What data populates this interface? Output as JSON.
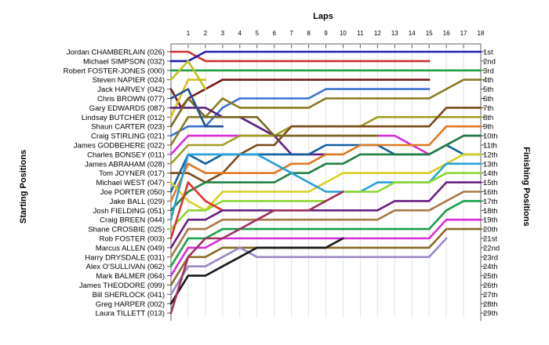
{
  "chart_data": {
    "type": "line",
    "title": "Laps",
    "ylabel_left": "Starting Positions",
    "ylabel_right": "Finishing Positions",
    "x_ticks": [
      1,
      2,
      3,
      4,
      5,
      6,
      7,
      8,
      9,
      10,
      11,
      12,
      13,
      14,
      15,
      16,
      17,
      18
    ],
    "xlim": [
      0,
      18
    ],
    "ylim": [
      1,
      29
    ],
    "grid": "vertical",
    "starting_labels": [
      "Jordan CHAMBERLAIN (026)",
      "Michael SIMPSON (032)",
      "Robert FOSTER-JONES (000)",
      "Steven NAPIER (024)",
      "Jack HARVEY (042)",
      "Chris BROWN (077)",
      "Gary EDWARDS (087)",
      "Lindsay BUTCHER (012)",
      "Shaun CARTER (023)",
      "Craig STIRLING (021)",
      "James GODBEHERE (022)",
      "Charles BONSEY (011)",
      "James ABRAHAM (028)",
      "Tom JOYNER (017)",
      "Michael WEST (047)",
      "Joe PORTER (050)",
      "Jake BALL (029)",
      "Josh FIELDING (051)",
      "Craig BREEN (044)",
      "Shane CROSBIE (025)",
      "Rob FOSTER (003)",
      "Marcus ALLEN (049)",
      "Harry DRYSDALE (031)",
      "Alex O'SULLIVAN (062)",
      "Mark BALMER (064)",
      "James THEODORE (099)",
      "Bill SHERLOCK (041)",
      "Greg HARPER (002)",
      "Laura TILLETT (013)"
    ],
    "finishing_labels": [
      "1st",
      "2nd",
      "3rd",
      "4th",
      "5th",
      "6th",
      "7th",
      "8th",
      "9th",
      "10th",
      "11th",
      "12th",
      "13th",
      "14th",
      "15th",
      "16th",
      "17th",
      "18th",
      "19th",
      "20th",
      "21st",
      "22nd",
      "23rd",
      "24th",
      "25th",
      "26th",
      "27th",
      "28th",
      "29th"
    ],
    "series": [
      {
        "color": "#d03030",
        "values": [
          [
            0,
            1
          ],
          [
            1,
            1
          ],
          [
            2,
            2
          ],
          [
            15,
            2
          ]
        ]
      },
      {
        "color": "#2020b0",
        "values": [
          [
            0,
            2
          ],
          [
            1,
            2
          ],
          [
            2,
            1
          ],
          [
            18,
            1
          ]
        ]
      },
      {
        "color": "#20a040",
        "values": [
          [
            0,
            3
          ],
          [
            18,
            3
          ]
        ]
      },
      {
        "color": "#7a1818",
        "values": [
          [
            0,
            5
          ],
          [
            0.6,
            7
          ],
          [
            1,
            6
          ],
          [
            2,
            5
          ],
          [
            3,
            4
          ],
          [
            15,
            4
          ]
        ]
      },
      {
        "color": "#3b73d0",
        "values": [
          [
            0,
            10
          ],
          [
            1,
            9
          ],
          [
            2,
            9
          ],
          [
            3,
            7
          ],
          [
            4,
            6
          ],
          [
            8,
            6
          ],
          [
            9,
            5
          ],
          [
            15,
            5
          ]
        ]
      },
      {
        "color": "#d8c020",
        "values": [
          [
            0,
            8
          ],
          [
            1,
            4
          ],
          [
            2,
            4
          ]
        ]
      },
      {
        "color": "#8a7a20",
        "values": [
          [
            0,
            11
          ],
          [
            1,
            8
          ],
          [
            2,
            8
          ],
          [
            3,
            6
          ],
          [
            4,
            7
          ],
          [
            8,
            7
          ],
          [
            9,
            6
          ],
          [
            15,
            6
          ],
          [
            16,
            5
          ],
          [
            17,
            4
          ],
          [
            18,
            4
          ]
        ]
      },
      {
        "color": "#5a2080",
        "values": [
          [
            0,
            7
          ],
          [
            1,
            7
          ],
          [
            2,
            7
          ],
          [
            3,
            8
          ],
          [
            4,
            8
          ],
          [
            5,
            9
          ],
          [
            6,
            10
          ],
          [
            7,
            12
          ],
          [
            9,
            12
          ]
        ]
      },
      {
        "color": "#d82cd8",
        "values": [
          [
            0,
            12
          ],
          [
            1,
            10
          ],
          [
            2,
            10
          ],
          [
            3,
            10
          ],
          [
            13,
            10
          ],
          [
            14,
            11
          ],
          [
            15,
            12
          ],
          [
            16,
            11
          ],
          [
            17,
            10
          ],
          [
            18,
            10
          ]
        ]
      },
      {
        "color": "#a0a020",
        "values": [
          [
            0,
            13
          ],
          [
            1,
            11
          ],
          [
            2,
            11
          ],
          [
            3,
            11
          ],
          [
            4,
            10
          ],
          [
            6,
            10
          ],
          [
            7,
            9
          ],
          [
            10,
            9
          ],
          [
            11,
            9
          ],
          [
            12,
            8
          ],
          [
            15,
            8
          ],
          [
            16,
            8
          ],
          [
            18,
            8
          ]
        ]
      },
      {
        "color": "#1060a0",
        "values": [
          [
            0,
            16
          ],
          [
            1,
            12
          ],
          [
            2,
            13
          ],
          [
            3,
            12
          ],
          [
            8,
            12
          ],
          [
            9,
            11
          ],
          [
            12,
            11
          ],
          [
            13,
            12
          ],
          [
            15,
            12
          ],
          [
            16,
            11
          ],
          [
            17,
            12
          ],
          [
            18,
            12
          ]
        ]
      },
      {
        "color": "#7a4a18",
        "values": [
          [
            0,
            14
          ],
          [
            1,
            14
          ],
          [
            2,
            15
          ],
          [
            3,
            14
          ],
          [
            4,
            12
          ],
          [
            5,
            11
          ],
          [
            6,
            11
          ],
          [
            7,
            9
          ],
          [
            12,
            9
          ],
          [
            13,
            9
          ],
          [
            15,
            9
          ],
          [
            16,
            7
          ],
          [
            18,
            7
          ]
        ]
      },
      {
        "color": "#e07820",
        "values": [
          [
            0,
            17
          ],
          [
            1,
            13
          ],
          [
            2,
            14
          ],
          [
            6,
            14
          ],
          [
            7,
            13
          ],
          [
            8,
            13
          ],
          [
            9,
            12
          ],
          [
            10,
            12
          ],
          [
            11,
            11
          ],
          [
            12,
            11
          ],
          [
            15,
            11
          ],
          [
            16,
            9
          ],
          [
            18,
            9
          ]
        ]
      },
      {
        "color": "#208040",
        "values": [
          [
            0,
            18
          ],
          [
            1,
            16
          ],
          [
            2,
            15
          ],
          [
            6,
            15
          ],
          [
            7,
            14
          ],
          [
            8,
            14
          ],
          [
            9,
            13
          ],
          [
            10,
            13
          ],
          [
            11,
            12
          ],
          [
            15,
            12
          ],
          [
            16,
            11
          ],
          [
            17,
            10
          ],
          [
            18,
            10
          ]
        ]
      },
      {
        "color": "#d8d020",
        "values": [
          [
            0,
            15
          ],
          [
            1,
            17
          ],
          [
            2,
            18
          ],
          [
            3,
            16
          ],
          [
            8,
            16
          ],
          [
            9,
            15
          ],
          [
            10,
            14
          ],
          [
            15,
            14
          ],
          [
            16,
            13
          ],
          [
            17,
            12
          ],
          [
            18,
            12
          ]
        ]
      },
      {
        "color": "#28a0d8",
        "values": [
          [
            0,
            19
          ],
          [
            1,
            12
          ],
          [
            2,
            12
          ],
          [
            3,
            12
          ],
          [
            5,
            12
          ],
          [
            6,
            13
          ],
          [
            7,
            14
          ],
          [
            8,
            15
          ],
          [
            9,
            16
          ],
          [
            10,
            16
          ],
          [
            11,
            16
          ],
          [
            12,
            15
          ],
          [
            15,
            15
          ],
          [
            16,
            13
          ],
          [
            17,
            13
          ],
          [
            18,
            13
          ]
        ]
      },
      {
        "color": "#8cd830",
        "values": [
          [
            0,
            20
          ],
          [
            1,
            18
          ],
          [
            2,
            18
          ],
          [
            3,
            17
          ],
          [
            4,
            17
          ],
          [
            9,
            17
          ],
          [
            10,
            16
          ],
          [
            12,
            16
          ],
          [
            13,
            15
          ],
          [
            15,
            15
          ],
          [
            16,
            14
          ],
          [
            17,
            14
          ],
          [
            18,
            14
          ]
        ]
      },
      {
        "color": "#e03030",
        "values": [
          [
            0,
            21
          ],
          [
            1,
            15
          ],
          [
            2,
            17
          ],
          [
            3,
            18
          ]
        ]
      },
      {
        "color": "#6a2080",
        "values": [
          [
            0,
            22
          ],
          [
            1,
            19
          ],
          [
            2,
            19
          ],
          [
            3,
            18
          ],
          [
            4,
            18
          ],
          [
            12,
            18
          ],
          [
            13,
            17
          ],
          [
            15,
            17
          ],
          [
            16,
            15
          ],
          [
            18,
            15
          ]
        ]
      },
      {
        "color": "#a87a48",
        "values": [
          [
            0,
            23
          ],
          [
            1,
            20
          ],
          [
            2,
            20
          ],
          [
            3,
            19
          ],
          [
            4,
            19
          ],
          [
            12,
            19
          ],
          [
            13,
            18
          ],
          [
            15,
            18
          ],
          [
            16,
            17
          ],
          [
            17,
            16
          ],
          [
            18,
            16
          ]
        ]
      },
      {
        "color": "#18a048",
        "values": [
          [
            0,
            24
          ],
          [
            1,
            21
          ],
          [
            2,
            21
          ],
          [
            3,
            20
          ],
          [
            15,
            20
          ],
          [
            16,
            18
          ],
          [
            17,
            17
          ],
          [
            18,
            17
          ]
        ]
      },
      {
        "color": "#d82cd8",
        "values": [
          [
            0,
            25
          ],
          [
            1,
            22
          ],
          [
            2,
            22
          ],
          [
            3,
            21
          ],
          [
            4,
            21
          ],
          [
            13,
            21
          ],
          [
            15,
            21
          ],
          [
            16,
            19
          ],
          [
            18,
            19
          ]
        ]
      },
      {
        "color": "#8a6a28",
        "values": [
          [
            0,
            26
          ],
          [
            1,
            23
          ],
          [
            2,
            23
          ],
          [
            3,
            22
          ],
          [
            4,
            22
          ],
          [
            15,
            22
          ],
          [
            16,
            20
          ],
          [
            18,
            20
          ]
        ]
      },
      {
        "color": "#9a88c8",
        "values": [
          [
            0,
            27
          ],
          [
            1,
            24
          ],
          [
            2,
            24
          ],
          [
            3,
            23
          ],
          [
            4,
            22
          ],
          [
            5,
            23
          ],
          [
            15,
            23
          ],
          [
            16,
            21
          ]
        ]
      },
      {
        "color": "#181818",
        "values": [
          [
            0,
            28
          ],
          [
            1,
            25
          ],
          [
            2,
            25
          ],
          [
            3,
            24
          ],
          [
            4,
            23
          ],
          [
            5,
            22
          ],
          [
            9,
            22
          ],
          [
            10,
            21
          ]
        ]
      },
      {
        "color": "#a03060",
        "values": [
          [
            0,
            29
          ],
          [
            1,
            23
          ],
          [
            2,
            21
          ],
          [
            3,
            21
          ],
          [
            4,
            20
          ],
          [
            5,
            19
          ],
          [
            6,
            18
          ],
          [
            8,
            18
          ],
          [
            9,
            17
          ],
          [
            10,
            16
          ]
        ]
      },
      {
        "color": "#7a6a20",
        "values": [
          [
            0,
            9
          ],
          [
            1,
            6
          ],
          [
            2,
            8
          ],
          [
            3,
            8
          ],
          [
            5,
            8
          ],
          [
            6,
            10
          ],
          [
            8,
            10
          ],
          [
            9,
            10
          ],
          [
            12,
            10
          ]
        ]
      },
      {
        "color": "#205090",
        "values": [
          [
            0,
            6
          ],
          [
            1,
            5
          ],
          [
            2,
            9
          ],
          [
            3,
            9
          ]
        ]
      },
      {
        "color": "#c0c020",
        "values": [
          [
            0,
            4
          ],
          [
            1,
            2
          ],
          [
            2,
            5
          ]
        ]
      }
    ]
  }
}
